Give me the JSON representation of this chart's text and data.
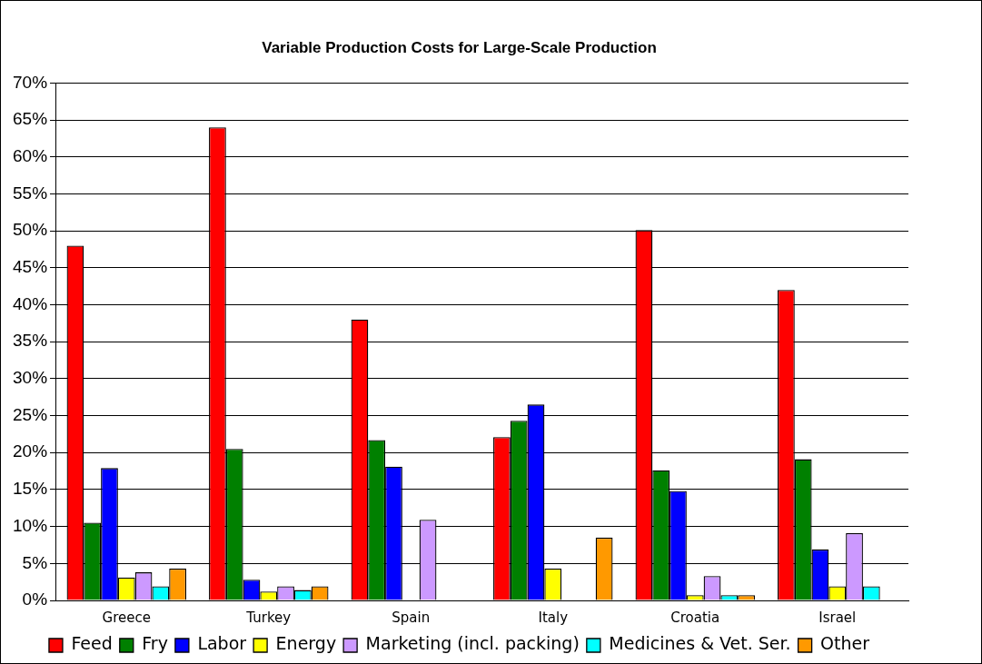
{
  "chart_data": {
    "type": "bar",
    "title": "Variable Production Costs for Large-Scale Production",
    "categories": [
      "Greece",
      "Turkey",
      "Spain",
      "Italy",
      "Croatia",
      "Israel"
    ],
    "series": [
      {
        "name": "Feed",
        "color": "#ff0000",
        "values": [
          48.0,
          64.0,
          38.0,
          22.1,
          50.1,
          42.0
        ]
      },
      {
        "name": "Fry",
        "color": "#008000",
        "values": [
          10.5,
          20.5,
          21.7,
          24.3,
          17.6,
          19.1
        ]
      },
      {
        "name": "Labor",
        "color": "#0000ff",
        "values": [
          17.9,
          2.8,
          18.1,
          26.5,
          14.8,
          6.9
        ]
      },
      {
        "name": "Energy",
        "color": "#ffff00",
        "values": [
          3.1,
          1.2,
          null,
          4.3,
          0.7,
          1.9
        ]
      },
      {
        "name": "Marketing (incl. packing)",
        "color": "#cc99ff",
        "values": [
          3.8,
          1.9,
          10.9,
          null,
          3.3,
          9.1
        ]
      },
      {
        "name": "Medicines & Vet. Ser.",
        "color": "#00ffff",
        "values": [
          1.9,
          1.4,
          null,
          null,
          0.7,
          1.9
        ]
      },
      {
        "name": "Other",
        "color": "#ff9900",
        "values": [
          4.3,
          1.9,
          null,
          8.5,
          0.7,
          null
        ]
      }
    ],
    "ylim": [
      0,
      70
    ],
    "yticks": [
      {
        "value": 0,
        "label": "0%"
      },
      {
        "value": 5,
        "label": "5%"
      },
      {
        "value": 10,
        "label": "10%"
      },
      {
        "value": 15,
        "label": "15%"
      },
      {
        "value": 20,
        "label": "20%"
      },
      {
        "value": 25,
        "label": "25%"
      },
      {
        "value": 30,
        "label": "30%"
      },
      {
        "value": 35,
        "label": "35%"
      },
      {
        "value": 40,
        "label": "40%"
      },
      {
        "value": 45,
        "label": "45%"
      },
      {
        "value": 50,
        "label": "50%"
      },
      {
        "value": 55,
        "label": "55%"
      },
      {
        "value": 60,
        "label": "60%"
      },
      {
        "value": 65,
        "label": "65%"
      },
      {
        "value": 70,
        "label": "70%"
      }
    ],
    "grid": "y",
    "legend": "bottom"
  }
}
